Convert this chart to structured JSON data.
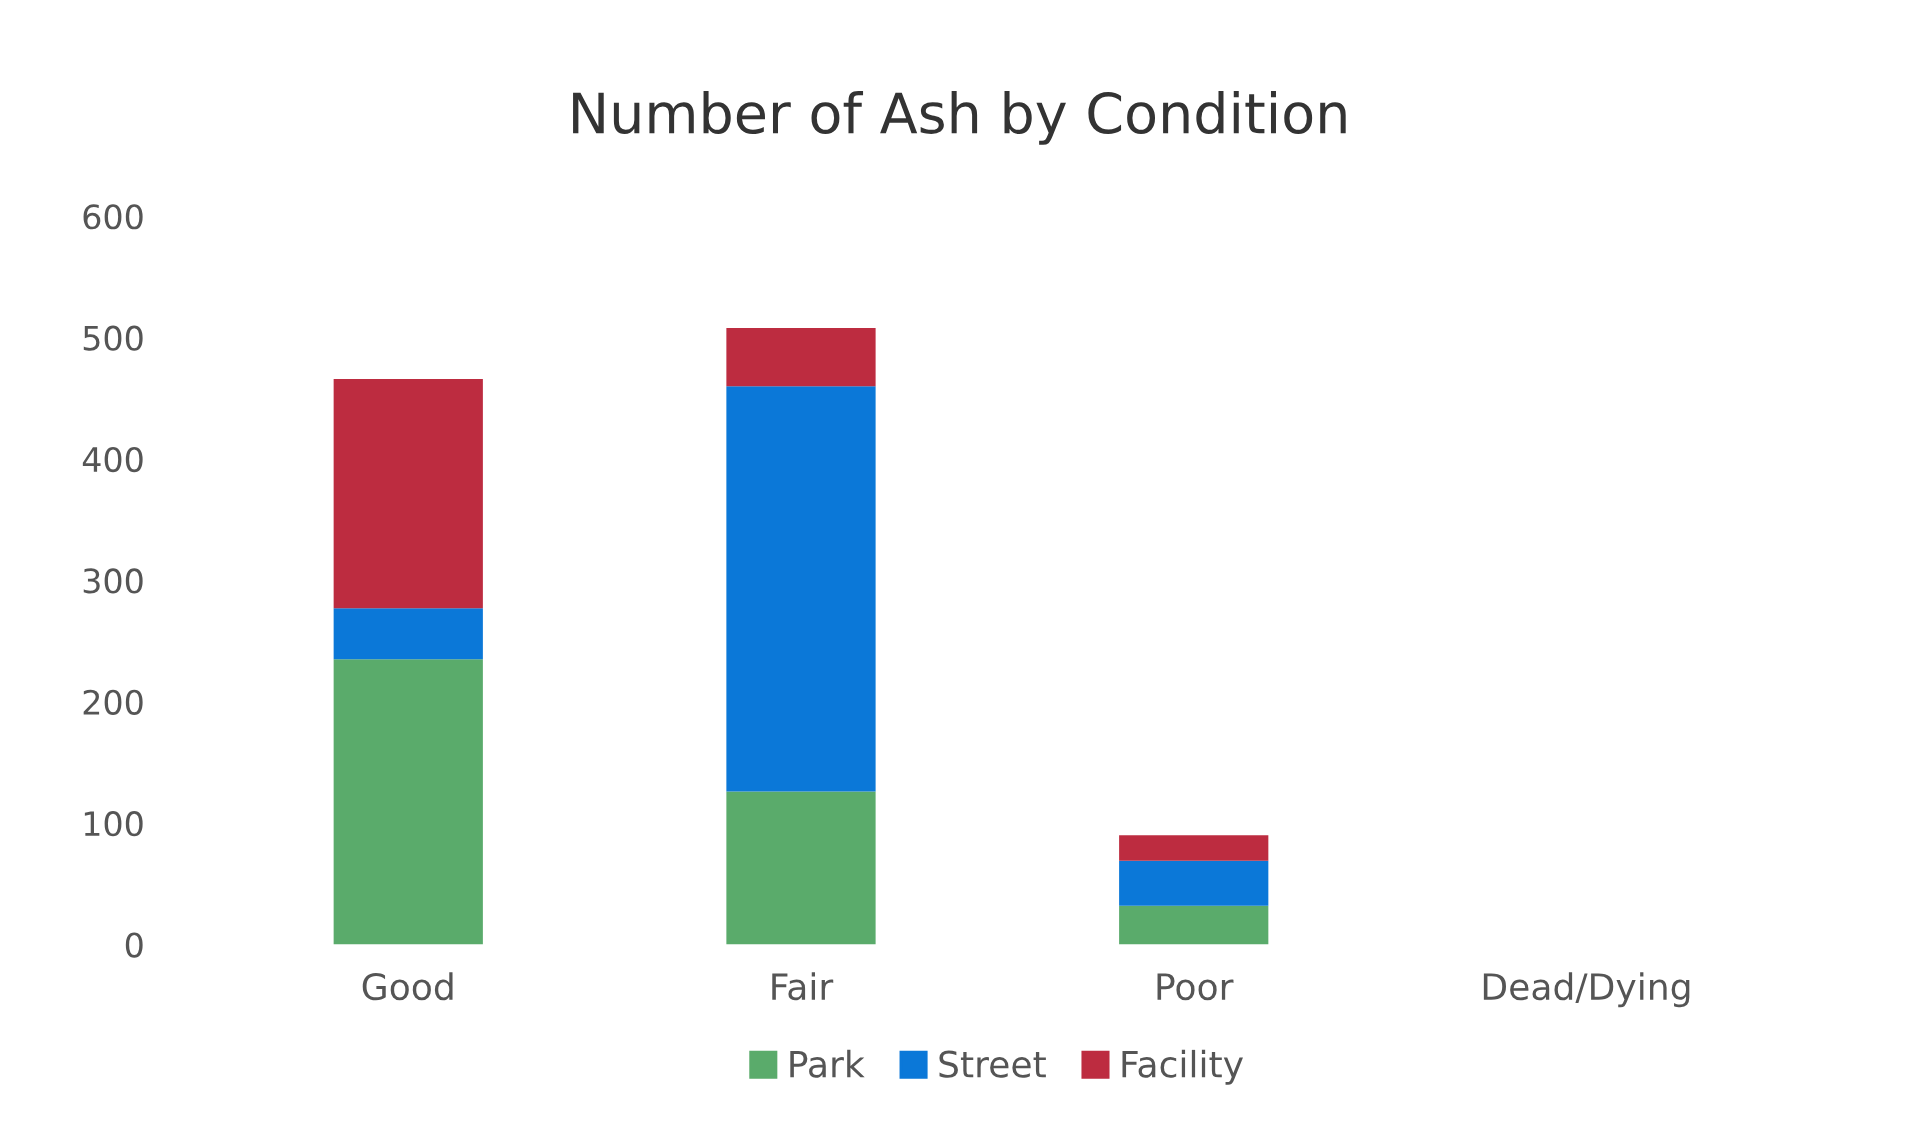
{
  "chart_data": {
    "type": "bar",
    "title": "Number of Ash by Condition",
    "stacked": true,
    "categories": [
      "Good",
      "Fair",
      "Poor",
      "Dead/Dying"
    ],
    "series": [
      {
        "name": "Park",
        "color": "#5aab6b",
        "values": [
          235,
          126,
          32,
          0
        ]
      },
      {
        "name": "Street",
        "color": "#0b78d8",
        "values": [
          42,
          334,
          37,
          0
        ]
      },
      {
        "name": "Facility",
        "color": "#bd2c40",
        "values": [
          189,
          48,
          21,
          0
        ]
      }
    ],
    "ylim": [
      0,
      600
    ],
    "yticks": [
      0,
      100,
      200,
      300,
      400,
      500,
      600
    ],
    "grid": false,
    "legend": "bottom"
  }
}
